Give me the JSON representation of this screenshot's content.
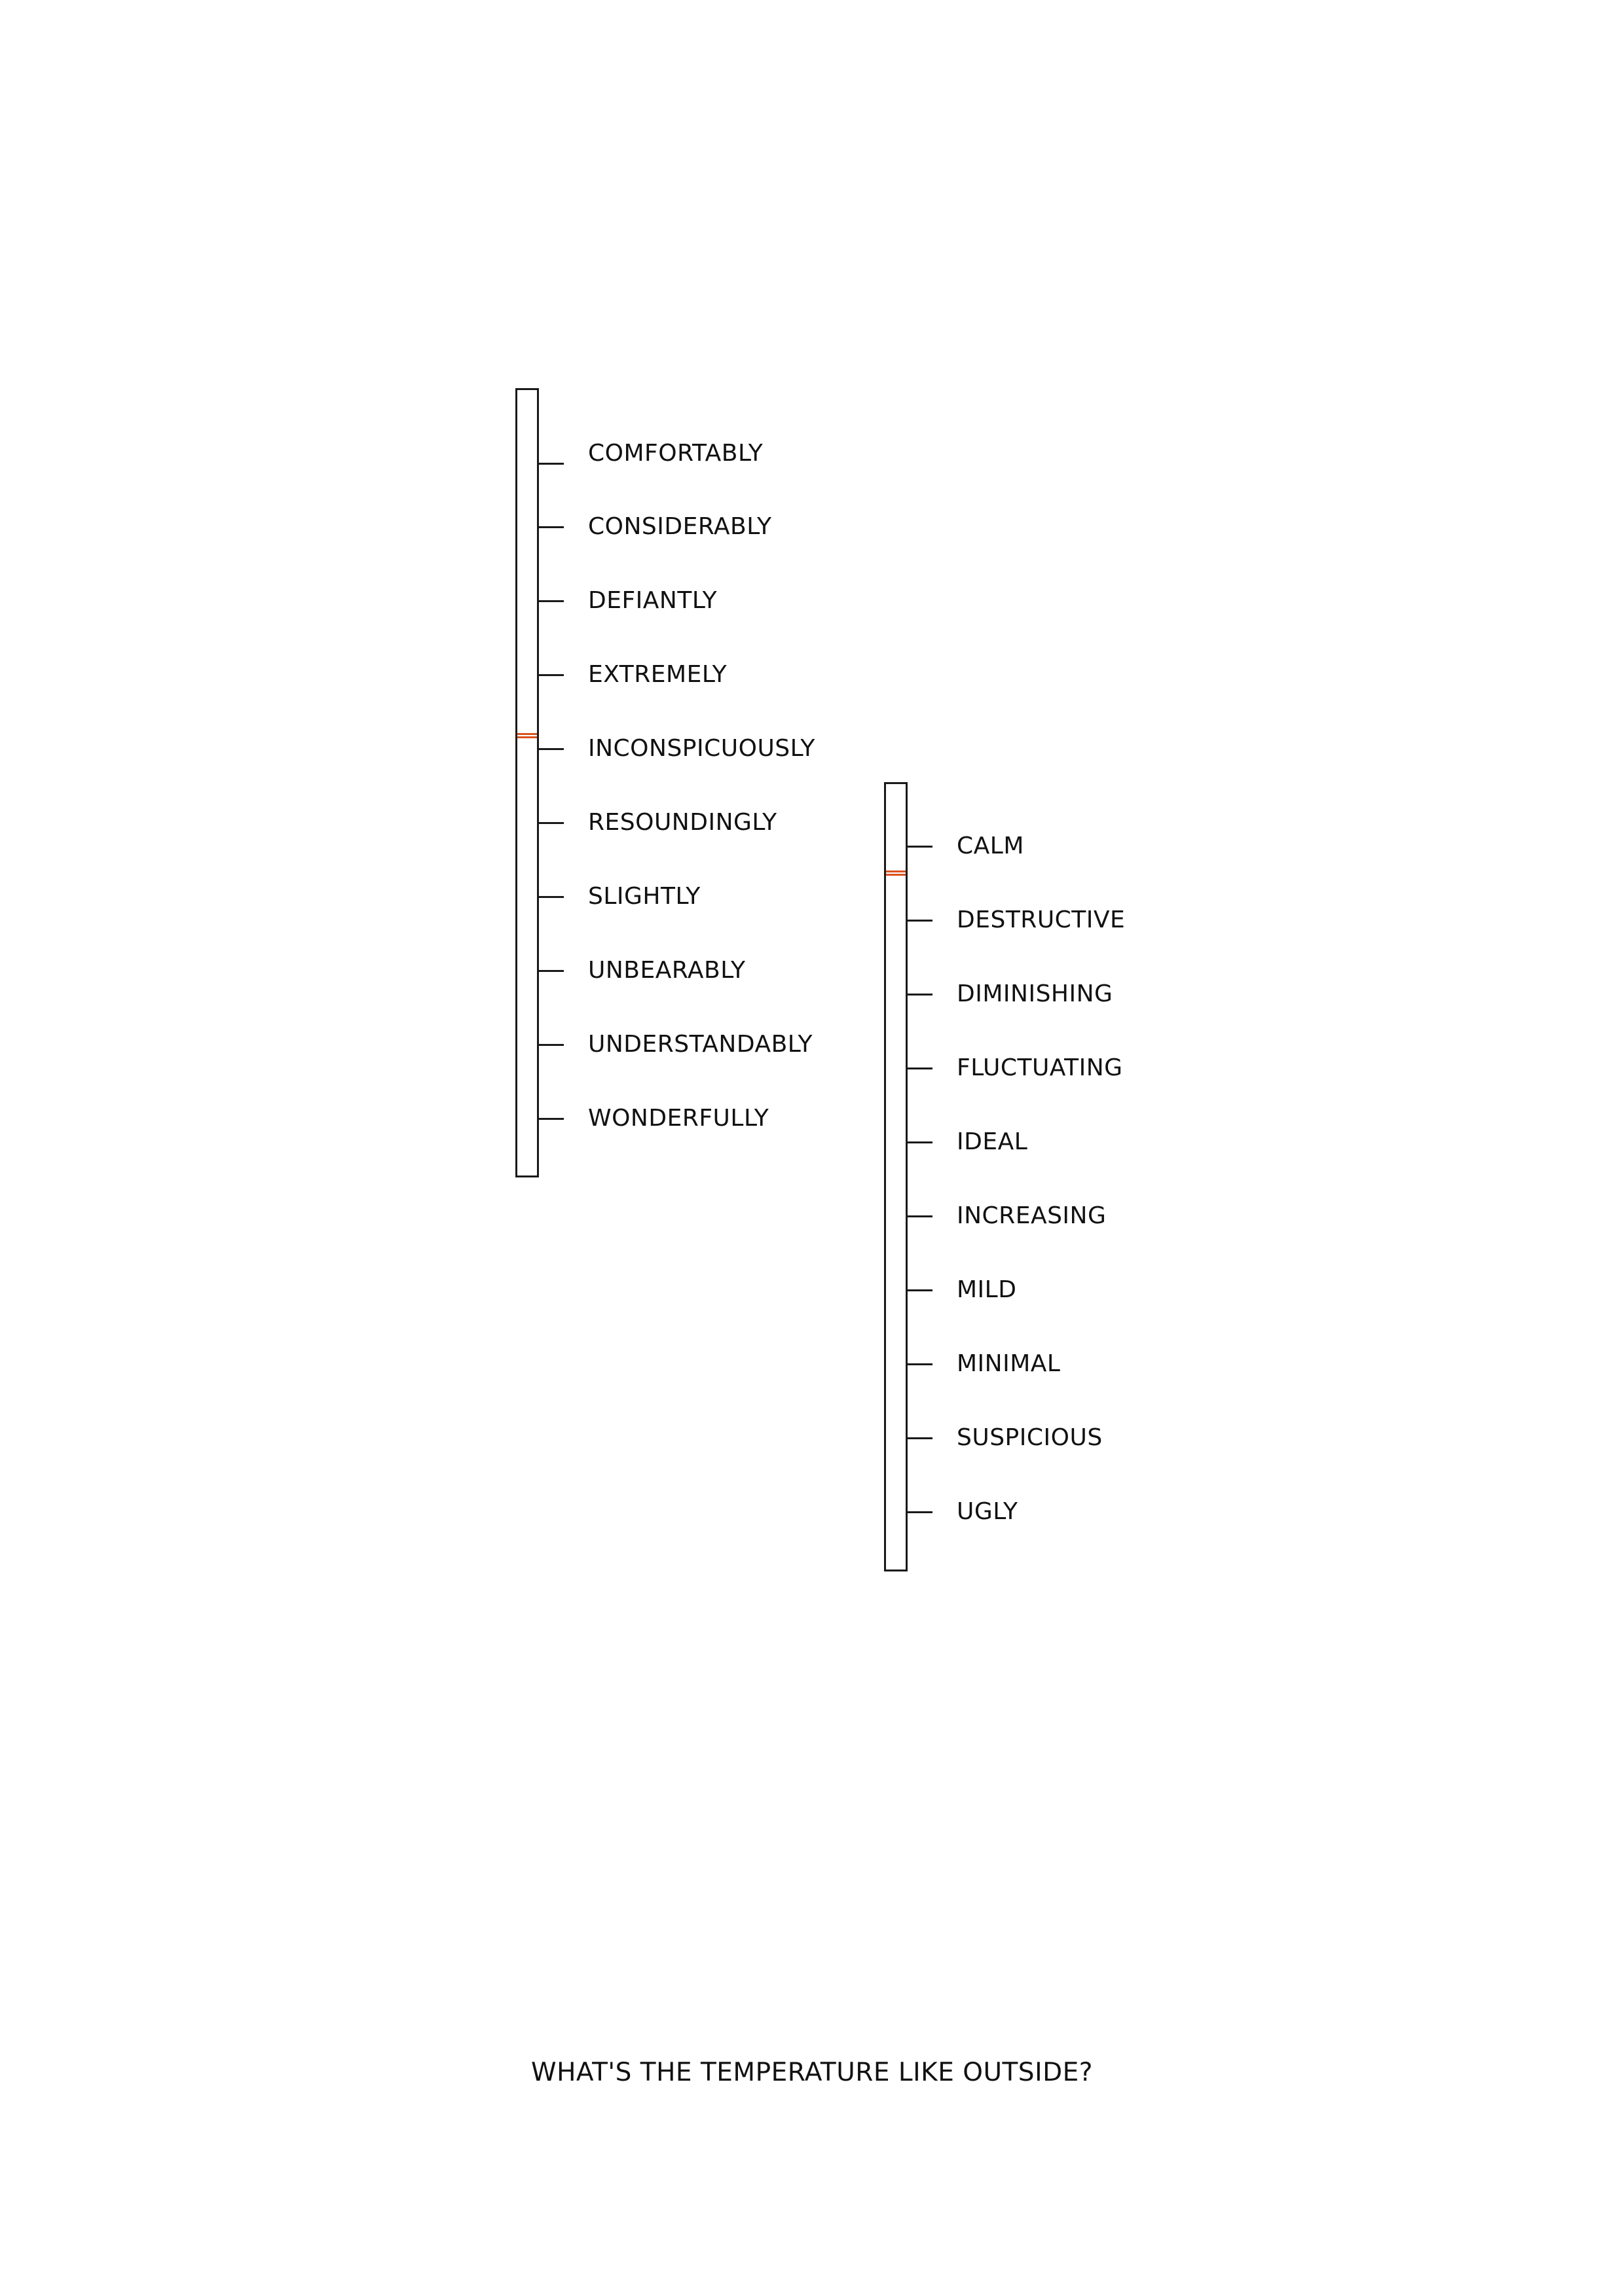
{
  "gauges": [
    {
      "id": "adverbs",
      "labels": [
        "COMFORTABLY",
        "CONSIDERABLY",
        "DEFIANTLY",
        "EXTREMELY",
        "INCONSPICUOUSLY",
        "RESOUNDINGLY",
        "SLIGHTLY",
        "UNBEARABLY",
        "UNDERSTANDABLY",
        "WONDERFULLY"
      ],
      "indicator_at": "INCONSPICUOUSLY",
      "indicator_color": "#d9531e"
    },
    {
      "id": "adjectives",
      "labels": [
        "CALM",
        "DESTRUCTIVE",
        "DIMINISHING",
        "FLUCTUATING",
        "IDEAL",
        "INCREASING",
        "MILD",
        "MINIMAL",
        "SUSPICIOUS",
        "UGLY"
      ],
      "indicator_at": "between CALM and DESTRUCTIVE",
      "indicator_color": "#d9531e"
    }
  ],
  "question": "WHAT'S THE TEMPERATURE LIKE OUTSIDE?"
}
